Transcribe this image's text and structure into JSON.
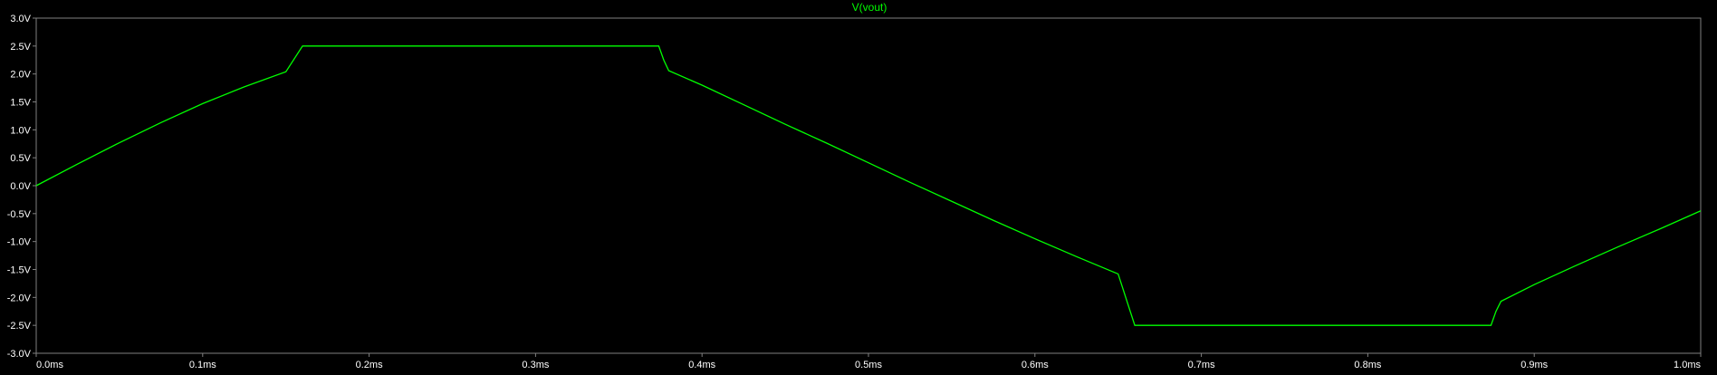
{
  "chart_data": {
    "type": "line",
    "title": "V(vout)",
    "xlabel": "",
    "ylabel": "",
    "xlim": [
      0.0,
      1.0
    ],
    "ylim": [
      -3.0,
      3.0
    ],
    "x_unit": "ms",
    "y_unit": "V",
    "grid": false,
    "legend": "none",
    "x_ticks": [
      "0.0ms",
      "0.1ms",
      "0.2ms",
      "0.3ms",
      "0.4ms",
      "0.5ms",
      "0.6ms",
      "0.7ms",
      "0.8ms",
      "0.9ms",
      "1.0ms"
    ],
    "y_ticks": [
      "3.0V",
      "2.5V",
      "2.0V",
      "1.5V",
      "1.0V",
      "0.5V",
      "0.0V",
      "-0.5V",
      "-1.0V",
      "-1.5V",
      "-2.0V",
      "-2.5V",
      "-3.0V"
    ],
    "colors": {
      "trace": "#00ff00",
      "title": "#00ff00",
      "axis": "#808080",
      "tick_text": "#ffffff",
      "background": "#000000"
    },
    "series": [
      {
        "x": [
          0.0,
          0.025,
          0.05,
          0.075,
          0.1,
          0.125,
          0.15,
          0.16,
          0.2,
          0.25,
          0.3,
          0.35,
          0.374,
          0.377,
          0.38,
          0.4,
          0.425,
          0.45,
          0.475,
          0.5,
          0.525,
          0.55,
          0.575,
          0.6,
          0.625,
          0.65,
          0.66,
          0.7,
          0.75,
          0.8,
          0.85,
          0.874,
          0.877,
          0.88,
          0.9,
          0.925,
          0.95,
          0.975,
          1.0
        ],
        "y": [
          0.0,
          0.39,
          0.77,
          1.13,
          1.47,
          1.77,
          2.04,
          2.5,
          2.5,
          2.5,
          2.5,
          2.5,
          2.5,
          2.25,
          2.06,
          1.8,
          1.45,
          1.1,
          0.76,
          0.41,
          0.06,
          -0.28,
          -0.62,
          -0.95,
          -1.27,
          -1.58,
          -2.5,
          -2.5,
          -2.5,
          -2.5,
          -2.5,
          -2.5,
          -2.25,
          -2.07,
          -1.77,
          -1.43,
          -1.1,
          -0.78,
          -0.45
        ]
      }
    ]
  }
}
